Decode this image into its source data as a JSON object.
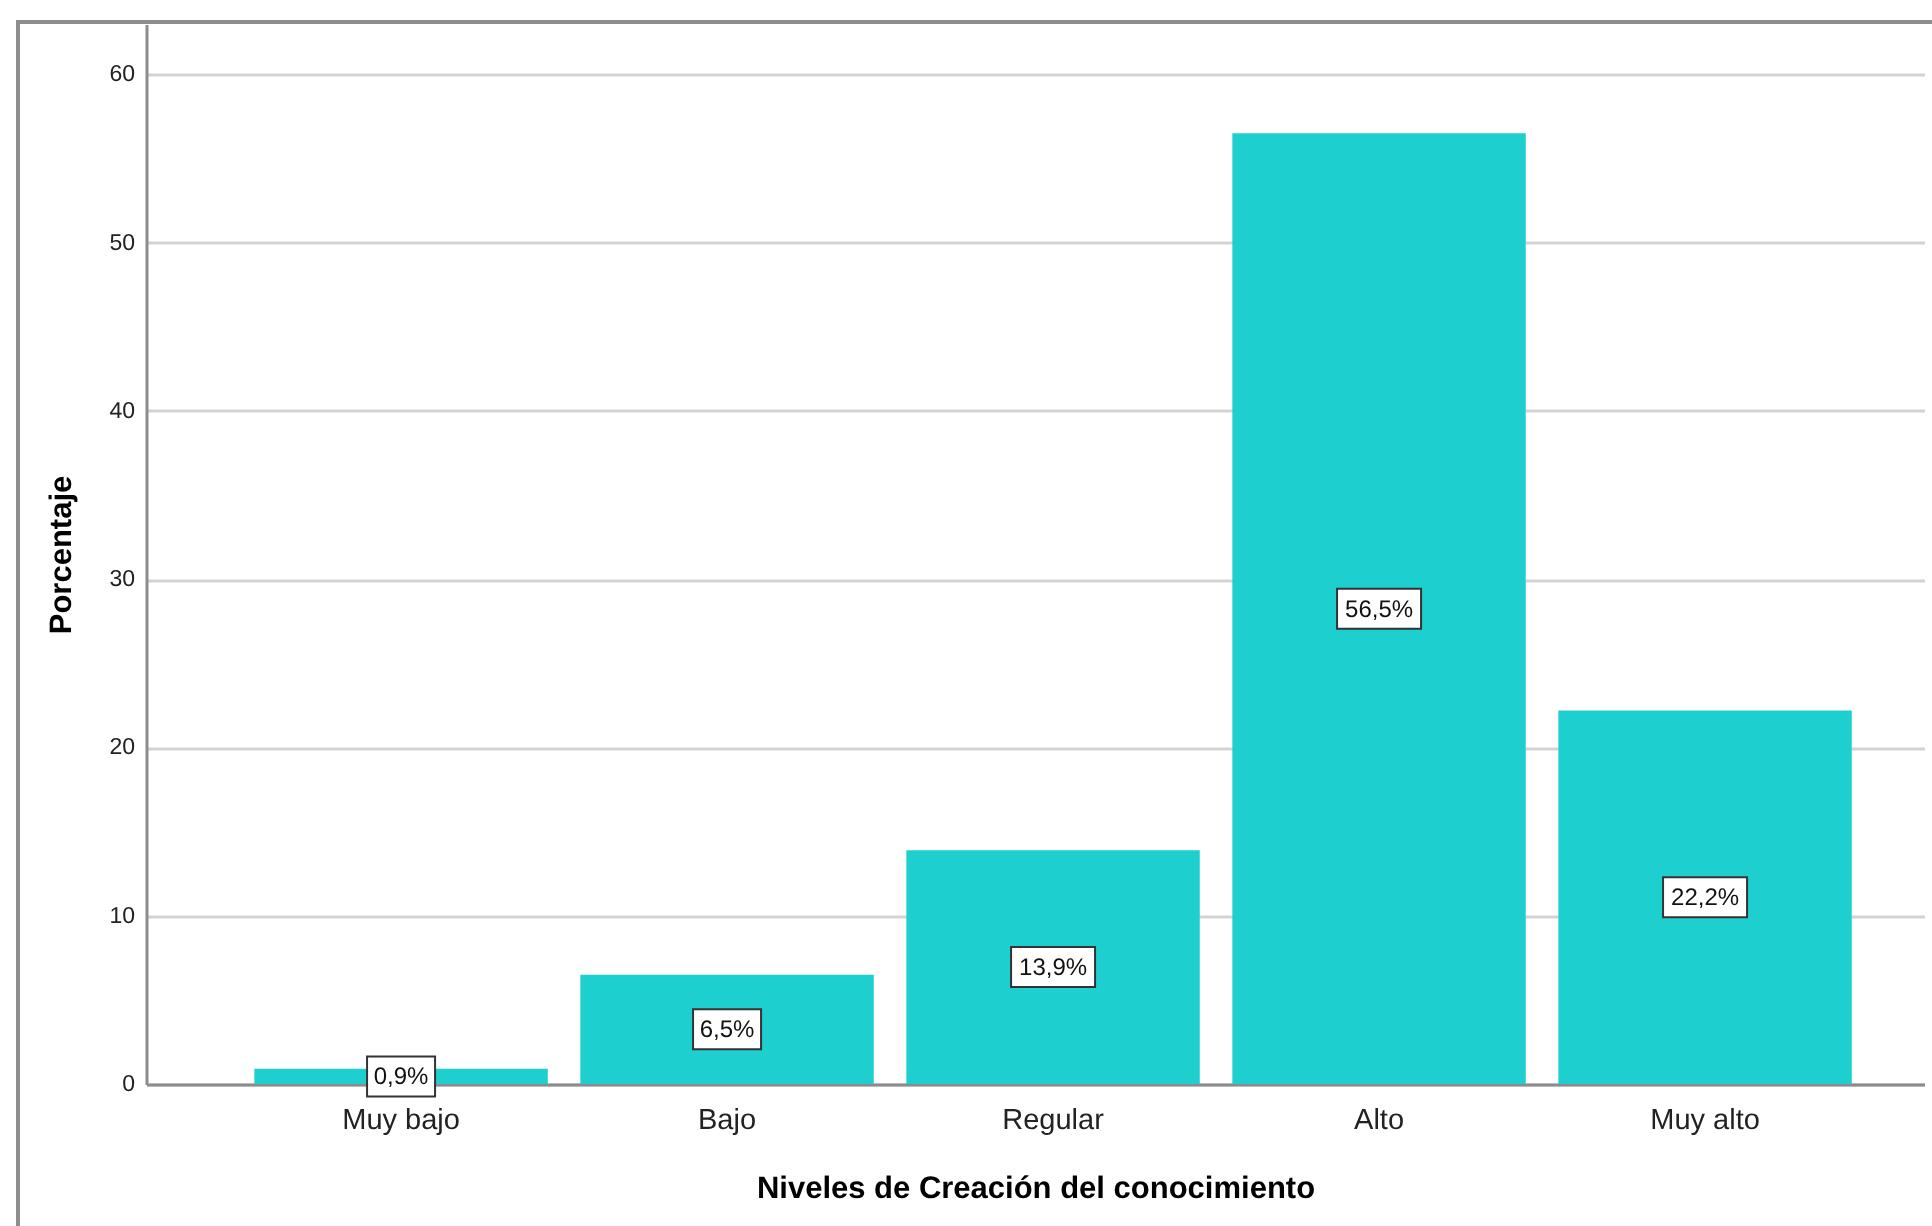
{
  "chart_data": {
    "type": "bar",
    "xlabel": "Niveles de Creación del conocimiento",
    "ylabel": "Porcentaje",
    "categories": [
      "Muy bajo",
      "Bajo",
      "Regular",
      "Alto",
      "Muy alto"
    ],
    "values": [
      0.9,
      6.5,
      13.9,
      56.5,
      22.2
    ],
    "value_labels": [
      "0,9%",
      "6,5%",
      "13,9%",
      "56,5%",
      "22,2%"
    ],
    "color": "#1ecfcf",
    "ylim": [
      0,
      63
    ],
    "yticks": [
      0,
      10,
      20,
      30,
      40,
      50,
      60
    ],
    "grid": "y"
  }
}
